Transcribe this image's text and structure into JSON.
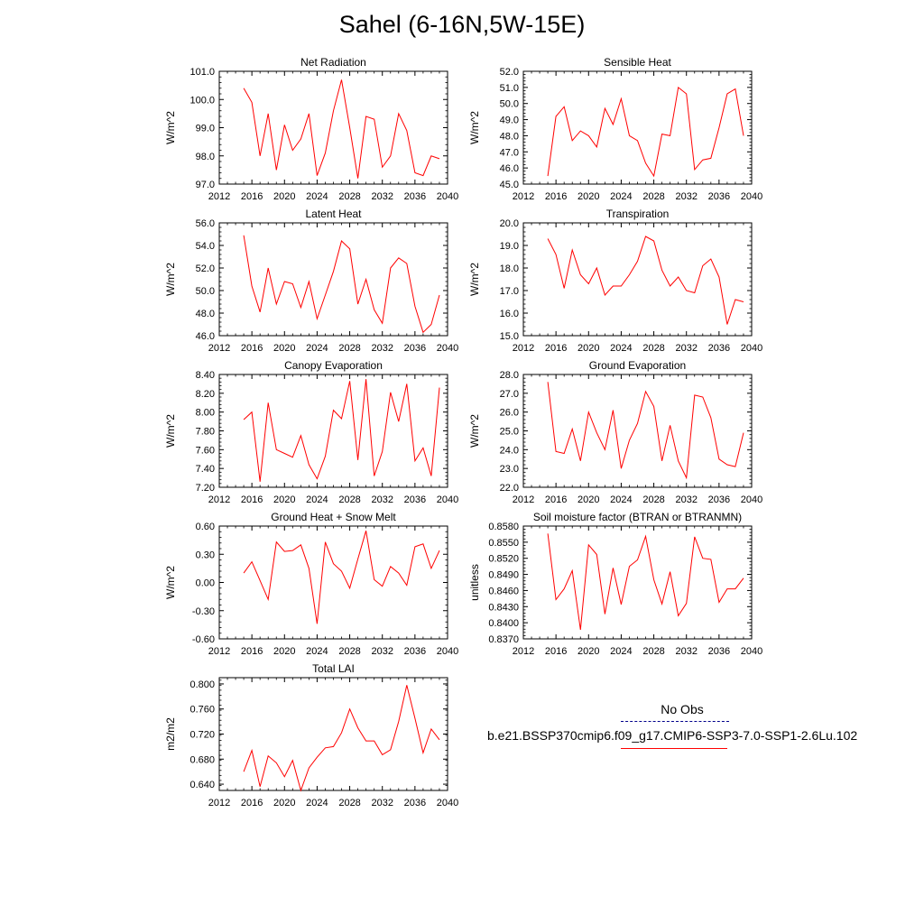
{
  "title": "Sahel (6-16N,5W-15E)",
  "colors": {
    "model": "#ff0000",
    "obs": "#00008b",
    "axis": "#000000"
  },
  "legend": {
    "obs_label": "No Obs",
    "model_label": "b.e21.BSSP370cmip6.f09_g17.CMIP6-SSP3-7.0-SSP1-2.6Lu.102"
  },
  "chart_data": [
    {
      "type": "line",
      "title": "Net Radiation",
      "ylabel": "W/m^2",
      "xlim": [
        2012,
        2040
      ],
      "ylim": [
        97.0,
        101.0
      ],
      "xticks": [
        "2012",
        "2016",
        "2020",
        "2024",
        "2028",
        "2032",
        "2036",
        "2040"
      ],
      "yticks": [
        "97.0",
        "98.0",
        "99.0",
        "100.0",
        "101.0"
      ],
      "x": [
        2015,
        2016,
        2017,
        2018,
        2019,
        2020,
        2021,
        2022,
        2023,
        2024,
        2025,
        2026,
        2027,
        2028,
        2029,
        2030,
        2031,
        2032,
        2033,
        2034,
        2035,
        2036,
        2037,
        2038,
        2039
      ],
      "series": [
        {
          "values": [
            100.4,
            99.9,
            98.0,
            99.5,
            97.5,
            99.1,
            98.2,
            98.6,
            99.5,
            97.3,
            98.1,
            99.6,
            100.7,
            99.0,
            97.2,
            99.4,
            99.3,
            97.6,
            98.0,
            99.5,
            98.9,
            97.4,
            97.3,
            98.0,
            97.9
          ]
        }
      ]
    },
    {
      "type": "line",
      "title": "Sensible Heat",
      "ylabel": "W/m^2",
      "xlim": [
        2012,
        2040
      ],
      "ylim": [
        45.0,
        52.0
      ],
      "xticks": [
        "2012",
        "2016",
        "2020",
        "2024",
        "2028",
        "2032",
        "2036",
        "2040"
      ],
      "yticks": [
        "45.0",
        "46.0",
        "47.0",
        "48.0",
        "49.0",
        "50.0",
        "51.0",
        "52.0"
      ],
      "x": [
        2015,
        2016,
        2017,
        2018,
        2019,
        2020,
        2021,
        2022,
        2023,
        2024,
        2025,
        2026,
        2027,
        2028,
        2029,
        2030,
        2031,
        2032,
        2033,
        2034,
        2035,
        2036,
        2037,
        2038,
        2039
      ],
      "series": [
        {
          "values": [
            45.5,
            49.2,
            49.8,
            47.7,
            48.3,
            48.0,
            47.3,
            49.7,
            48.7,
            50.3,
            48.0,
            47.7,
            46.3,
            45.5,
            48.1,
            48.0,
            51.0,
            50.6,
            45.9,
            46.5,
            46.6,
            48.5,
            50.6,
            50.9,
            48.0
          ]
        }
      ]
    },
    {
      "type": "line",
      "title": "Latent Heat",
      "ylabel": "W/m^2",
      "xlim": [
        2012,
        2040
      ],
      "ylim": [
        46.0,
        56.0
      ],
      "xticks": [
        "2012",
        "2016",
        "2020",
        "2024",
        "2028",
        "2032",
        "2036",
        "2040"
      ],
      "yticks": [
        "46.0",
        "48.0",
        "50.0",
        "52.0",
        "54.0",
        "56.0"
      ],
      "x": [
        2015,
        2016,
        2017,
        2018,
        2019,
        2020,
        2021,
        2022,
        2023,
        2024,
        2025,
        2026,
        2027,
        2028,
        2029,
        2030,
        2031,
        2032,
        2033,
        2034,
        2035,
        2036,
        2037,
        2038,
        2039
      ],
      "series": [
        {
          "values": [
            54.9,
            50.4,
            48.1,
            52.0,
            48.8,
            50.8,
            50.6,
            48.5,
            50.8,
            47.5,
            49.6,
            51.7,
            54.4,
            53.7,
            48.8,
            51.0,
            48.3,
            47.1,
            52.0,
            52.9,
            52.4,
            48.6,
            46.3,
            47.0,
            49.6
          ]
        }
      ]
    },
    {
      "type": "line",
      "title": "Transpiration",
      "ylabel": "W/m^2",
      "xlim": [
        2012,
        2040
      ],
      "ylim": [
        15.0,
        20.0
      ],
      "xticks": [
        "2012",
        "2016",
        "2020",
        "2024",
        "2028",
        "2032",
        "2036",
        "2040"
      ],
      "yticks": [
        "15.0",
        "16.0",
        "17.0",
        "18.0",
        "19.0",
        "20.0"
      ],
      "x": [
        2015,
        2016,
        2017,
        2018,
        2019,
        2020,
        2021,
        2022,
        2023,
        2024,
        2025,
        2026,
        2027,
        2028,
        2029,
        2030,
        2031,
        2032,
        2033,
        2034,
        2035,
        2036,
        2037,
        2038,
        2039
      ],
      "series": [
        {
          "values": [
            19.3,
            18.6,
            17.1,
            18.8,
            17.7,
            17.3,
            18.0,
            16.8,
            17.2,
            17.2,
            17.7,
            18.3,
            19.4,
            19.2,
            17.9,
            17.2,
            17.6,
            17.0,
            16.9,
            18.1,
            18.4,
            17.6,
            15.5,
            16.6,
            16.5
          ]
        }
      ]
    },
    {
      "type": "line",
      "title": "Canopy Evaporation",
      "ylabel": "W/m^2",
      "xlim": [
        2012,
        2040
      ],
      "ylim": [
        7.2,
        8.4
      ],
      "xticks": [
        "2012",
        "2016",
        "2020",
        "2024",
        "2028",
        "2032",
        "2036",
        "2040"
      ],
      "yticks": [
        "7.20",
        "7.40",
        "7.60",
        "7.80",
        "8.00",
        "8.20",
        "8.40"
      ],
      "x": [
        2015,
        2016,
        2017,
        2018,
        2019,
        2020,
        2021,
        2022,
        2023,
        2024,
        2025,
        2026,
        2027,
        2028,
        2029,
        2030,
        2031,
        2032,
        2033,
        2034,
        2035,
        2036,
        2037,
        2038,
        2039
      ],
      "series": [
        {
          "values": [
            7.92,
            8.0,
            7.26,
            8.1,
            7.6,
            7.56,
            7.52,
            7.75,
            7.44,
            7.29,
            7.53,
            8.02,
            7.93,
            8.33,
            7.49,
            8.35,
            7.32,
            7.58,
            8.21,
            7.9,
            8.3,
            7.48,
            7.62,
            7.32,
            8.26
          ]
        }
      ]
    },
    {
      "type": "line",
      "title": "Ground Evaporation",
      "ylabel": "W/m^2",
      "xlim": [
        2012,
        2040
      ],
      "ylim": [
        22.0,
        28.0
      ],
      "xticks": [
        "2012",
        "2016",
        "2020",
        "2024",
        "2028",
        "2032",
        "2036",
        "2040"
      ],
      "yticks": [
        "22.0",
        "23.0",
        "24.0",
        "25.0",
        "26.0",
        "27.0",
        "28.0"
      ],
      "x": [
        2015,
        2016,
        2017,
        2018,
        2019,
        2020,
        2021,
        2022,
        2023,
        2024,
        2025,
        2026,
        2027,
        2028,
        2029,
        2030,
        2031,
        2032,
        2033,
        2034,
        2035,
        2036,
        2037,
        2038,
        2039
      ],
      "series": [
        {
          "values": [
            27.6,
            23.9,
            23.8,
            25.1,
            23.4,
            26.0,
            24.9,
            24.0,
            26.1,
            23.0,
            24.5,
            25.4,
            27.1,
            26.3,
            23.4,
            25.3,
            23.4,
            22.5,
            26.9,
            26.8,
            25.7,
            23.5,
            23.2,
            23.1,
            24.9
          ]
        }
      ]
    },
    {
      "type": "line",
      "title": "Ground Heat + Snow Melt",
      "ylabel": "W/m^2",
      "xlim": [
        2012,
        2040
      ],
      "ylim": [
        -0.6,
        0.6
      ],
      "xticks": [
        "2012",
        "2016",
        "2020",
        "2024",
        "2028",
        "2032",
        "2036",
        "2040"
      ],
      "yticks": [
        "-0.60",
        "-0.30",
        "0.00",
        "0.30",
        "0.60"
      ],
      "x": [
        2015,
        2016,
        2017,
        2018,
        2019,
        2020,
        2021,
        2022,
        2023,
        2024,
        2025,
        2026,
        2027,
        2028,
        2029,
        2030,
        2031,
        2032,
        2033,
        2034,
        2035,
        2036,
        2037,
        2038,
        2039
      ],
      "series": [
        {
          "values": [
            0.1,
            0.22,
            0.02,
            -0.18,
            0.43,
            0.33,
            0.34,
            0.4,
            0.15,
            -0.44,
            0.43,
            0.2,
            0.12,
            -0.06,
            0.25,
            0.55,
            0.03,
            -0.04,
            0.17,
            0.1,
            -0.03,
            0.38,
            0.41,
            0.15,
            0.34
          ]
        }
      ]
    },
    {
      "type": "line",
      "title": "Soil moisture factor (BTRAN or BTRANMN)",
      "ylabel": "unitless",
      "xlim": [
        2012,
        2040
      ],
      "ylim": [
        0.837,
        0.858
      ],
      "xticks": [
        "2012",
        "2016",
        "2020",
        "2024",
        "2028",
        "2032",
        "2036",
        "2040"
      ],
      "yticks": [
        "0.8370",
        "0.8400",
        "0.8430",
        "0.8460",
        "0.8490",
        "0.8520",
        "0.8550",
        "0.8580"
      ],
      "x": [
        2015,
        2016,
        2017,
        2018,
        2019,
        2020,
        2021,
        2022,
        2023,
        2024,
        2025,
        2026,
        2027,
        2028,
        2029,
        2030,
        2031,
        2032,
        2033,
        2034,
        2035,
        2036,
        2037,
        2038,
        2039
      ],
      "series": [
        {
          "values": [
            0.8566,
            0.8443,
            0.8463,
            0.8497,
            0.8387,
            0.8545,
            0.8527,
            0.8416,
            0.8502,
            0.8434,
            0.8505,
            0.8517,
            0.8561,
            0.848,
            0.8435,
            0.8495,
            0.8413,
            0.8436,
            0.856,
            0.852,
            0.8518,
            0.8438,
            0.8463,
            0.8463,
            0.8483
          ]
        }
      ]
    },
    {
      "type": "line",
      "title": "Total LAI",
      "ylabel": "m2/m2",
      "xlim": [
        2012,
        2040
      ],
      "ylim": [
        0.63,
        0.81
      ],
      "xticks": [
        "2012",
        "2016",
        "2020",
        "2024",
        "2028",
        "2032",
        "2036",
        "2040"
      ],
      "yticks": [
        "0.640",
        "0.680",
        "0.720",
        "0.760",
        "0.800"
      ],
      "x": [
        2015,
        2016,
        2017,
        2018,
        2019,
        2020,
        2021,
        2022,
        2023,
        2024,
        2025,
        2026,
        2027,
        2028,
        2029,
        2030,
        2031,
        2032,
        2033,
        2034,
        2035,
        2036,
        2037,
        2038,
        2039
      ],
      "series": [
        {
          "values": [
            0.66,
            0.694,
            0.636,
            0.685,
            0.674,
            0.652,
            0.678,
            0.63,
            0.666,
            0.683,
            0.698,
            0.7,
            0.722,
            0.76,
            0.73,
            0.709,
            0.709,
            0.687,
            0.695,
            0.74,
            0.798,
            0.745,
            0.69,
            0.728,
            0.711
          ]
        }
      ]
    }
  ]
}
